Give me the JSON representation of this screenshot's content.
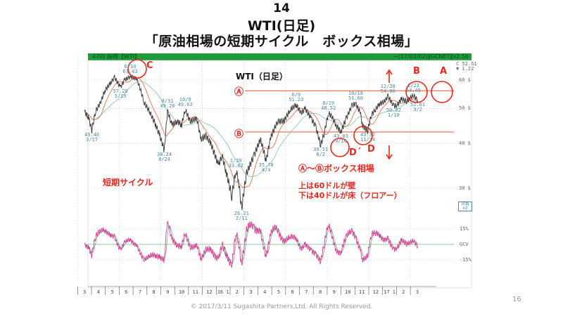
{
  "slide": {
    "number_title": "14",
    "subtitle": "WTI(日足)",
    "heading": "「原油相場の短期サイクル　ボックス相場」",
    "footer": "© 2017/3/11 Sugashita Partners,Ltd. All Rights Reserved.",
    "page": "16"
  },
  "chart_header": {
    "left": "470) 指標【WTI】",
    "right": "~(17/03/02)‖GCNET‖v2.56",
    "close": "C 52.61",
    "change": "▼ 1.22"
  },
  "annotations": {
    "chart_label": "WTI（日足）",
    "line_a": "Ⓐ",
    "line_b": "Ⓑ",
    "a": "A",
    "b": "B",
    "c": "C",
    "d": "D",
    "d_prime": "D´",
    "short_cycle": "短期サイクル",
    "box": "Ⓐ～Ⓑボックス相場",
    "upper": "上は60ドルが壁",
    "lower": "下は40ドルが床（フロアー）",
    "log_scale": "対数",
    "log_scale2": "x2"
  },
  "colors": {
    "price": "#333333",
    "ma_short": "#e07050",
    "ma_long": "#90c8a8",
    "annotation": "#e8281c",
    "osc": "#d04090",
    "osc2": "#888888",
    "header": "#1f9a3a"
  },
  "chart_data": {
    "type": "line",
    "title": "WTI（日足）",
    "yscale": "log",
    "ylim": [
      24,
      64
    ],
    "y_ticks": [
      {
        "v": 60,
        "label": "60 $"
      },
      {
        "v": 50,
        "label": "50 $"
      },
      {
        "v": 40,
        "label": "40 $"
      },
      {
        "v": 30,
        "label": "30 $"
      }
    ],
    "x_months": [
      "3",
      "4",
      "5",
      "6",
      "7",
      "8",
      "9",
      "10",
      "11",
      "12",
      "16 1",
      "2",
      "3",
      "4",
      "5",
      "6",
      "7",
      "8",
      "9",
      "10",
      "11",
      "12",
      "17 1",
      "2",
      "3"
    ],
    "box_lines": [
      {
        "name": "Ⓐ",
        "value": 56
      },
      {
        "name": "Ⓑ",
        "value": 43
      }
    ],
    "series": [
      {
        "name": "WTI",
        "points": [
          [
            "2015-03-01",
            49
          ],
          [
            "2015-03-10",
            47
          ],
          [
            "2015-03-17",
            43.46
          ],
          [
            "2015-03-25",
            49
          ],
          [
            "2015-04-06",
            52
          ],
          [
            "2015-04-15",
            56
          ],
          [
            "2015-04-28",
            59
          ],
          [
            "2015-05-06",
            61
          ],
          [
            "2015-05-19",
            57.28
          ],
          [
            "2015-05-28",
            60
          ],
          [
            "2015-06-10",
            61.43
          ],
          [
            "2015-06-24",
            60.5
          ],
          [
            "2015-07-01",
            57
          ],
          [
            "2015-07-10",
            52
          ],
          [
            "2015-07-22",
            49
          ],
          [
            "2015-08-05",
            45
          ],
          [
            "2015-08-14",
            42
          ],
          [
            "2015-08-24",
            38.24
          ],
          [
            "2015-08-31",
            49.2
          ],
          [
            "2015-09-10",
            45
          ],
          [
            "2015-09-22",
            46
          ],
          [
            "2015-10-01",
            45
          ],
          [
            "2015-10-09",
            49.63
          ],
          [
            "2015-10-20",
            46
          ],
          [
            "2015-11-04",
            47
          ],
          [
            "2015-11-13",
            41
          ],
          [
            "2015-11-24",
            42
          ],
          [
            "2015-12-04",
            40
          ],
          [
            "2015-12-21",
            34.7
          ],
          [
            "2015-12-29",
            37
          ],
          [
            "2016-01-08",
            33
          ],
          [
            "2016-01-20",
            28.5
          ],
          [
            "2016-01-29",
            33.62
          ],
          [
            "2016-02-04",
            31.7
          ],
          [
            "2016-02-11",
            26.21
          ],
          [
            "2016-02-22",
            33
          ],
          [
            "2016-03-08",
            37
          ],
          [
            "2016-03-22",
            41
          ],
          [
            "2016-04-04",
            35.7
          ],
          [
            "2016-04-14",
            41.5
          ],
          [
            "2016-04-29",
            46
          ],
          [
            "2016-05-13",
            46.2
          ],
          [
            "2016-05-26",
            49.5
          ],
          [
            "2016-06-09",
            51.23
          ],
          [
            "2016-06-20",
            48.5
          ],
          [
            "2016-06-29",
            49.9
          ],
          [
            "2016-07-12",
            46.8
          ],
          [
            "2016-07-21",
            44.7
          ],
          [
            "2016-08-02",
            39.51
          ],
          [
            "2016-08-10",
            42.8
          ],
          [
            "2016-08-19",
            48.52
          ],
          [
            "2016-08-26",
            47.6
          ],
          [
            "2016-09-06",
            44.8
          ],
          [
            "2016-09-16",
            43.03
          ],
          [
            "2016-09-28",
            47
          ],
          [
            "2016-10-10",
            51
          ],
          [
            "2016-10-18",
            51.6
          ],
          [
            "2016-10-28",
            48.7
          ],
          [
            "2016-11-03",
            44.7
          ],
          [
            "2016-11-14",
            43.32
          ],
          [
            "2016-11-22",
            48
          ],
          [
            "2016-11-30",
            49.4
          ],
          [
            "2016-12-09",
            51.5
          ],
          [
            "2016-12-20",
            52.2
          ],
          [
            "2016-12-28",
            54.06
          ],
          [
            "2017-01-10",
            50.82
          ],
          [
            "2017-01-18",
            51
          ],
          [
            "2017-01-27",
            53.2
          ],
          [
            "2017-02-08",
            52.3
          ],
          [
            "2017-02-23",
            54.45
          ],
          [
            "2017-03-02",
            52.61
          ]
        ]
      }
    ],
    "point_labels": [
      {
        "date": "2015-03-17",
        "price": 43.46,
        "text": "43.46",
        "date_text": "3/17"
      },
      {
        "date": "2015-05-19",
        "price": 57.28,
        "text": "57.28",
        "date_text": "5/19"
      },
      {
        "date": "2015-06-10",
        "price": 61.43,
        "text": "6/10",
        "date_text": "61.43"
      },
      {
        "date": "2015-08-24",
        "price": 38.24,
        "text": "38.24",
        "date_text": "8/24"
      },
      {
        "date": "2015-08-31",
        "price": 49.2,
        "text": "8/31",
        "date_text": "49.20"
      },
      {
        "date": "2015-10-09",
        "price": 49.63,
        "text": "10/9",
        "date_text": "49.63"
      },
      {
        "date": "2016-01-29",
        "price": 33.62,
        "text": "1/29",
        "date_text": "33.62"
      },
      {
        "date": "2016-02-11",
        "price": 26.21,
        "text": "26.21",
        "date_text": "2/11"
      },
      {
        "date": "2016-04-04",
        "price": 35.7,
        "text": "35.70",
        "date_text": "4/4"
      },
      {
        "date": "2016-06-09",
        "price": 51.23,
        "text": "6/9",
        "date_text": "51.23"
      },
      {
        "date": "2016-08-02",
        "price": 39.51,
        "text": "39.51",
        "date_text": "8/2"
      },
      {
        "date": "2016-08-19",
        "price": 48.52,
        "text": "8/19",
        "date_text": "48.52"
      },
      {
        "date": "2016-09-16",
        "price": 43.03,
        "text": "43.03",
        "date_text": "9/16"
      },
      {
        "date": "2016-10-18",
        "price": 51.6,
        "text": "10/18",
        "date_text": "51.60"
      },
      {
        "date": "2016-11-14",
        "price": 43.32,
        "text": "43.32",
        "date_text": "11/14"
      },
      {
        "date": "2016-12-28",
        "price": 54.06,
        "text": "12/28",
        "date_text": "54.06"
      },
      {
        "date": "2017-01-10",
        "price": 50.82,
        "text": "50.82",
        "date_text": "1/10"
      },
      {
        "date": "2017-02-23",
        "price": 54.45,
        "text": "2/23",
        "date_text": "54.45"
      },
      {
        "date": "2017-03-02",
        "price": 52.61,
        "text": "52.61",
        "date_text": "3/2"
      }
    ],
    "oscillator": {
      "name": "GCV",
      "ticks": [
        {
          "v": 15,
          "label": "15%"
        },
        {
          "v": 0,
          "label": "GCV"
        },
        {
          "v": -15,
          "label": "-15%"
        }
      ]
    }
  }
}
